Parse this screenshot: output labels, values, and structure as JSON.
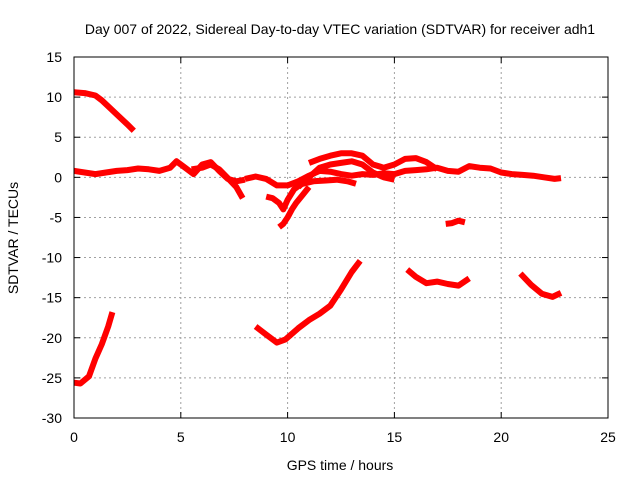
{
  "chart_data": {
    "type": "line",
    "title": "Day 007 of 2022, Sidereal Day-to-day VTEC variation (SDTVAR) for receiver adh1",
    "xlabel": "GPS time / hours",
    "ylabel": "SDTVAR / TECUs",
    "xlim": [
      0,
      25
    ],
    "ylim": [
      -30,
      15
    ],
    "xticks": [
      0,
      5,
      10,
      15,
      20,
      25
    ],
    "xtick_labels": [
      "0",
      "5",
      "10",
      "15",
      "20",
      "25"
    ],
    "yticks": [
      15,
      10,
      5,
      0,
      -5,
      -10,
      -15,
      -20,
      -25,
      -30
    ],
    "ytick_labels": [
      "15",
      "10",
      "5",
      "0",
      "-5",
      "-10",
      "-15",
      "-20",
      "-25",
      "-30"
    ],
    "grid": true,
    "series_color": "#ff0000",
    "series": [
      {
        "name": "arc-01",
        "x": [
          0.0,
          0.5,
          1.0,
          1.3,
          1.7,
          2.1,
          2.5,
          2.8
        ],
        "y": [
          10.6,
          10.5,
          10.2,
          9.6,
          8.6,
          7.6,
          6.6,
          5.8
        ]
      },
      {
        "name": "arc-02",
        "x": [
          0.0,
          0.5,
          1.0,
          1.5,
          2.0,
          2.5,
          3.0,
          3.5,
          4.0,
          4.5,
          4.8,
          5.2,
          5.6,
          6.0,
          6.4,
          6.8,
          7.2,
          7.6,
          8.0
        ],
        "y": [
          0.8,
          0.6,
          0.4,
          0.6,
          0.8,
          0.9,
          1.1,
          1.0,
          0.8,
          1.2,
          2.0,
          1.2,
          0.4,
          1.6,
          1.9,
          0.8,
          -0.2,
          -0.5,
          -0.3
        ]
      },
      {
        "name": "arc-03",
        "x": [
          5.5,
          6.0,
          6.4,
          6.8,
          7.2,
          7.6,
          7.9
        ],
        "y": [
          1.0,
          1.2,
          1.6,
          1.0,
          -0.1,
          -1.2,
          -2.6
        ]
      },
      {
        "name": "arc-04",
        "x": [
          8.0,
          8.5,
          9.0,
          9.5,
          10.0,
          10.5,
          11.0,
          11.5,
          12.0,
          12.5,
          13.0,
          13.5,
          14.0,
          14.5,
          15.0,
          15.5,
          16.0,
          16.5,
          17.0,
          17.5,
          18.0,
          18.5,
          19.0,
          19.5,
          20.0,
          20.5,
          21.0,
          21.5,
          22.0,
          22.5,
          22.8
        ],
        "y": [
          -0.2,
          0.1,
          -0.2,
          -1.0,
          -1.0,
          -0.5,
          0.2,
          0.8,
          0.7,
          0.4,
          0.2,
          0.4,
          0.3,
          0.5,
          0.4,
          0.8,
          0.9,
          1.0,
          1.2,
          0.8,
          0.7,
          1.4,
          1.2,
          1.1,
          0.6,
          0.4,
          0.3,
          0.2,
          0.0,
          -0.2,
          -0.1
        ]
      },
      {
        "name": "arc-05",
        "x": [
          11.0,
          11.5,
          12.0,
          12.5,
          13.0,
          13.5,
          14.0,
          14.5,
          15.0,
          15.5,
          16.0,
          16.5,
          17.0
        ],
        "y": [
          1.8,
          2.3,
          2.7,
          3.0,
          3.0,
          2.7,
          1.6,
          1.2,
          1.6,
          2.3,
          2.4,
          1.9,
          1.0
        ]
      },
      {
        "name": "arc-06",
        "x": [
          10.5,
          11.0,
          11.5,
          12.0,
          12.5,
          13.0,
          13.5,
          14.0,
          14.5,
          15.0
        ],
        "y": [
          -1.2,
          0.0,
          1.2,
          1.6,
          1.8,
          2.0,
          1.6,
          0.6,
          0.0,
          -0.3
        ]
      },
      {
        "name": "arc-07",
        "x": [
          10.7,
          11.2,
          11.8,
          12.3,
          12.8,
          13.2
        ],
        "y": [
          -0.8,
          -0.5,
          -0.4,
          -0.3,
          -0.5,
          -0.8
        ]
      },
      {
        "name": "arc-08",
        "x": [
          9.0,
          9.3,
          9.6,
          9.8,
          10.0,
          10.3,
          10.6,
          10.9,
          11.2
        ],
        "y": [
          -2.4,
          -2.6,
          -3.2,
          -4.0,
          -2.8,
          -1.5,
          -0.9,
          -0.6,
          -0.5
        ]
      },
      {
        "name": "arc-09",
        "x": [
          9.6,
          9.8,
          10.0,
          10.2,
          10.4,
          10.7,
          11.0
        ],
        "y": [
          -6.2,
          -5.8,
          -5.0,
          -4.0,
          -3.2,
          -2.2,
          -1.2
        ]
      },
      {
        "name": "arc-10",
        "x": [
          17.4,
          17.7,
          18.0,
          18.3
        ],
        "y": [
          -5.8,
          -5.7,
          -5.4,
          -5.6
        ]
      },
      {
        "name": "arc-11",
        "x": [
          8.5,
          9.0,
          9.5,
          9.9,
          10.5,
          11.0,
          11.5,
          12.0,
          12.5,
          13.0,
          13.4
        ],
        "y": [
          -18.6,
          -19.6,
          -20.6,
          -20.2,
          -18.8,
          -17.8,
          -17.0,
          -16.0,
          -14.0,
          -11.8,
          -10.4
        ]
      },
      {
        "name": "arc-12",
        "x": [
          15.6,
          16.0,
          16.5,
          17.0,
          17.5,
          18.0,
          18.5
        ],
        "y": [
          -11.5,
          -12.4,
          -13.2,
          -13.0,
          -13.3,
          -13.5,
          -12.6
        ]
      },
      {
        "name": "arc-13",
        "x": [
          20.9,
          21.4,
          21.9,
          22.4,
          22.8
        ],
        "y": [
          -12.0,
          -13.4,
          -14.5,
          -14.9,
          -14.4
        ]
      },
      {
        "name": "arc-14",
        "x": [
          0.0,
          0.3,
          0.7,
          1.0,
          1.3,
          1.6,
          1.8
        ],
        "y": [
          -25.6,
          -25.7,
          -24.8,
          -22.6,
          -20.8,
          -18.6,
          -16.8
        ]
      }
    ]
  }
}
